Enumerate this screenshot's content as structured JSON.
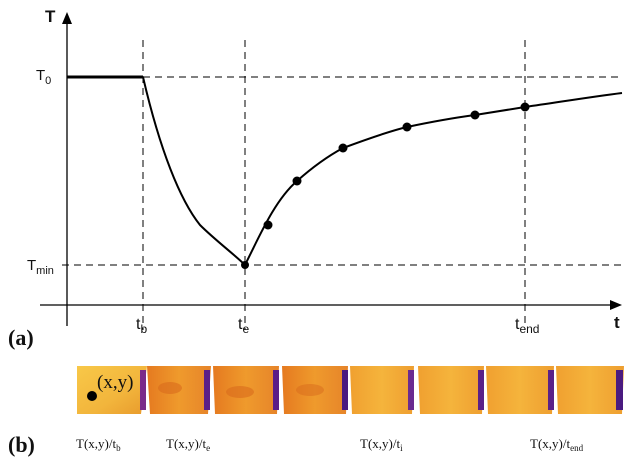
{
  "panel_a": {
    "label": "(a)",
    "axis_y_label": "T",
    "axis_x_label": "t",
    "y_labels": {
      "t0": {
        "base": "T",
        "sub": "0"
      },
      "tmin": {
        "base": "T",
        "sub": "min"
      }
    },
    "x_labels": {
      "tb": {
        "base": "t",
        "sub": "b"
      },
      "te": {
        "base": "t",
        "sub": "e"
      },
      "tend": {
        "base": "t",
        "sub": "end"
      }
    },
    "curve_points_count": 7
  },
  "panel_b": {
    "label": "(b)",
    "point_label": "(x,y)",
    "frame_count": 8,
    "captions": [
      {
        "base": "T(x,y)/t",
        "sub": "b"
      },
      {
        "base": "T(x,y)/t",
        "sub": "e"
      },
      {
        "base": "T(x,y)/t",
        "sub": "i"
      },
      {
        "base": "T(x,y)/t",
        "sub": "end"
      }
    ],
    "colors": {
      "hot": "#f6c04a",
      "mid": "#ea7a22",
      "cold": "#6a2aa0"
    }
  }
}
